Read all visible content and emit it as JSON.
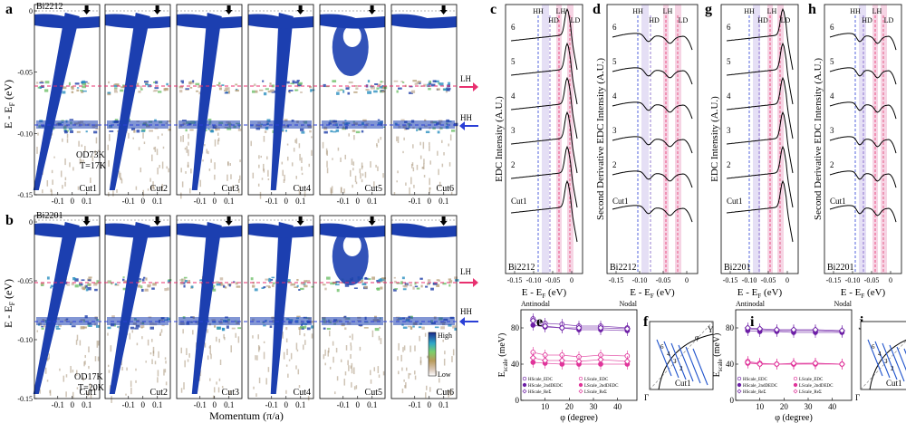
{
  "colors": {
    "band": "#1c3fb0",
    "lh_line": "#e8306f",
    "hh_line": "#2a3fd6",
    "ld_line": "#e04070",
    "hd_line": "#7a5cc8",
    "pink_shade": "#f6d4e4",
    "violet_shade": "#e2dcf4",
    "series_purple": "#6d1fa6",
    "series_pink": "#e0349a",
    "cut_blue": "#2255cc"
  },
  "panels": {
    "a": {
      "label": "a",
      "sample": "Bi2212",
      "doping": "OD73K",
      "temp": "T=17K"
    },
    "b": {
      "label": "b",
      "sample": "Bi2201",
      "doping": "OD17K",
      "temp": "T=20K"
    },
    "c": {
      "label": "c",
      "sample": "Bi2212",
      "ylabel": "EDC Intensity (A.U.)"
    },
    "d": {
      "label": "d",
      "sample": "Bi2212",
      "ylabel": "Second Derivative EDC Intensity (A.U.)"
    },
    "e": {
      "label": "e"
    },
    "f": {
      "label": "f"
    },
    "g": {
      "label": "g",
      "sample": "Bi2201",
      "ylabel": "EDC Intensity (A.U.)"
    },
    "h": {
      "label": "h",
      "sample": "Bi2201",
      "ylabel": "Second Derivative EDC Intensity (A.U.)"
    },
    "i": {
      "label": "i"
    },
    "j": {
      "label": "j"
    }
  },
  "cuts": [
    "Cut1",
    "Cut2",
    "Cut3",
    "Cut4",
    "Cut5",
    "Cut6"
  ],
  "spectra_axes": {
    "ylabel": "E - E",
    "ylabel_sub": "F",
    "ylabel_unit": " (eV)",
    "yticks": [
      "0",
      "-0.05",
      "-0.10",
      "-0.15"
    ],
    "xticks": [
      "-0.1",
      "0",
      "0.1"
    ],
    "xlabel": "Momentum (π/a)",
    "lh": "LH",
    "hh": "HH",
    "colorbar_high": "High",
    "colorbar_low": "Low"
  },
  "edc_axes": {
    "xlabel": "E - E",
    "xlabel_sub": "F",
    "xlabel_unit": " (eV)",
    "xticks": [
      "-0.15",
      "-0.10",
      "-0.05",
      "0"
    ],
    "line_labels": [
      "HH",
      "HD",
      "LH",
      "LD"
    ],
    "curve_labels_c": [
      "6",
      "5",
      "4",
      "3",
      "2",
      "Cut1"
    ],
    "curve_labels_d": [
      "6",
      "5",
      "4",
      "3",
      "2",
      "Cut1"
    ],
    "curve_labels_g": [
      "6",
      "5",
      "4",
      "3",
      "2",
      "Cut1"
    ],
    "curve_labels_h": [
      "6",
      "5",
      "4",
      "3",
      "2",
      "Cut1"
    ]
  },
  "scale_axes": {
    "antinodal": "Antinodal",
    "nodal": "Nodal",
    "ylabel": "E",
    "ylabel_sub": "scale",
    "ylabel_unit": " (meV)",
    "xlabel": "φ (degree)",
    "yticks": [
      "0",
      "40",
      "80"
    ],
    "xticks": [
      "10",
      "20",
      "30",
      "40"
    ]
  },
  "chart_data": [
    {
      "type": "scatter",
      "panel": "e",
      "xlabel": "φ (degree)",
      "ylabel": "Escale (meV)",
      "xlim": [
        0,
        48
      ],
      "ylim": [
        0,
        100
      ],
      "x": [
        5,
        10,
        17,
        24,
        33,
        44
      ],
      "series": [
        {
          "name": "HScale_EDC",
          "values": [
            90,
            85,
            84,
            82,
            82,
            80
          ]
        },
        {
          "name": "HScale_2ndDEDC",
          "values": [
            83,
            81,
            80,
            78,
            78,
            77
          ]
        },
        {
          "name": "HScale_ReΣ",
          "values": [
            88,
            82,
            80,
            80,
            80,
            79
          ]
        },
        {
          "name": "LScale_EDC",
          "values": [
            53,
            50,
            50,
            48,
            50,
            49
          ]
        },
        {
          "name": "LScale_2ndDEDC",
          "values": [
            42,
            41,
            40,
            40,
            40,
            40
          ]
        },
        {
          "name": "LScale_ReΣ",
          "values": [
            47,
            44,
            44,
            43,
            45,
            43
          ]
        }
      ],
      "legend": [
        "HScale_EDC",
        "LScale_EDC",
        "HScale_2ndDEDC",
        "LScale_2ndDEDC",
        "HScale_ReΣ",
        "LScale_ReΣ"
      ]
    },
    {
      "type": "scatter",
      "panel": "i",
      "xlabel": "φ (degree)",
      "ylabel": "Escale (meV)",
      "xlim": [
        0,
        48
      ],
      "ylim": [
        0,
        100
      ],
      "x": [
        5,
        10,
        17,
        24,
        33,
        44
      ],
      "series": [
        {
          "name": "HScale_EDC",
          "values": [
            79,
            78,
            77,
            77,
            77,
            76
          ]
        },
        {
          "name": "HScale_2ndDEDC",
          "values": [
            77,
            76,
            76,
            75,
            75,
            75
          ]
        },
        {
          "name": "HScale_ReΣ",
          "values": [
            80,
            79,
            78,
            78,
            78,
            77
          ]
        },
        {
          "name": "LScale_EDC",
          "values": [
            43,
            41,
            40,
            40,
            41,
            40
          ]
        },
        {
          "name": "LScale_2ndDEDC",
          "values": [
            41,
            40,
            40,
            40,
            40,
            40
          ]
        },
        {
          "name": "LScale_ReΣ",
          "values": [
            42,
            40,
            40,
            41,
            41,
            40
          ]
        }
      ],
      "legend": [
        "HScale_EDC",
        "LScale_EDC",
        "HScale_2ndDEDC",
        "LScale_2ndDEDC",
        "HScale_ReΣ",
        "LScale_ReΣ"
      ]
    }
  ],
  "bz": {
    "y_label": "Y",
    "gamma_label": "Γ",
    "phi_label": "φ",
    "cut_label": "Cut1",
    "cut_numbers": [
      "6",
      "4",
      "3",
      "2"
    ]
  }
}
